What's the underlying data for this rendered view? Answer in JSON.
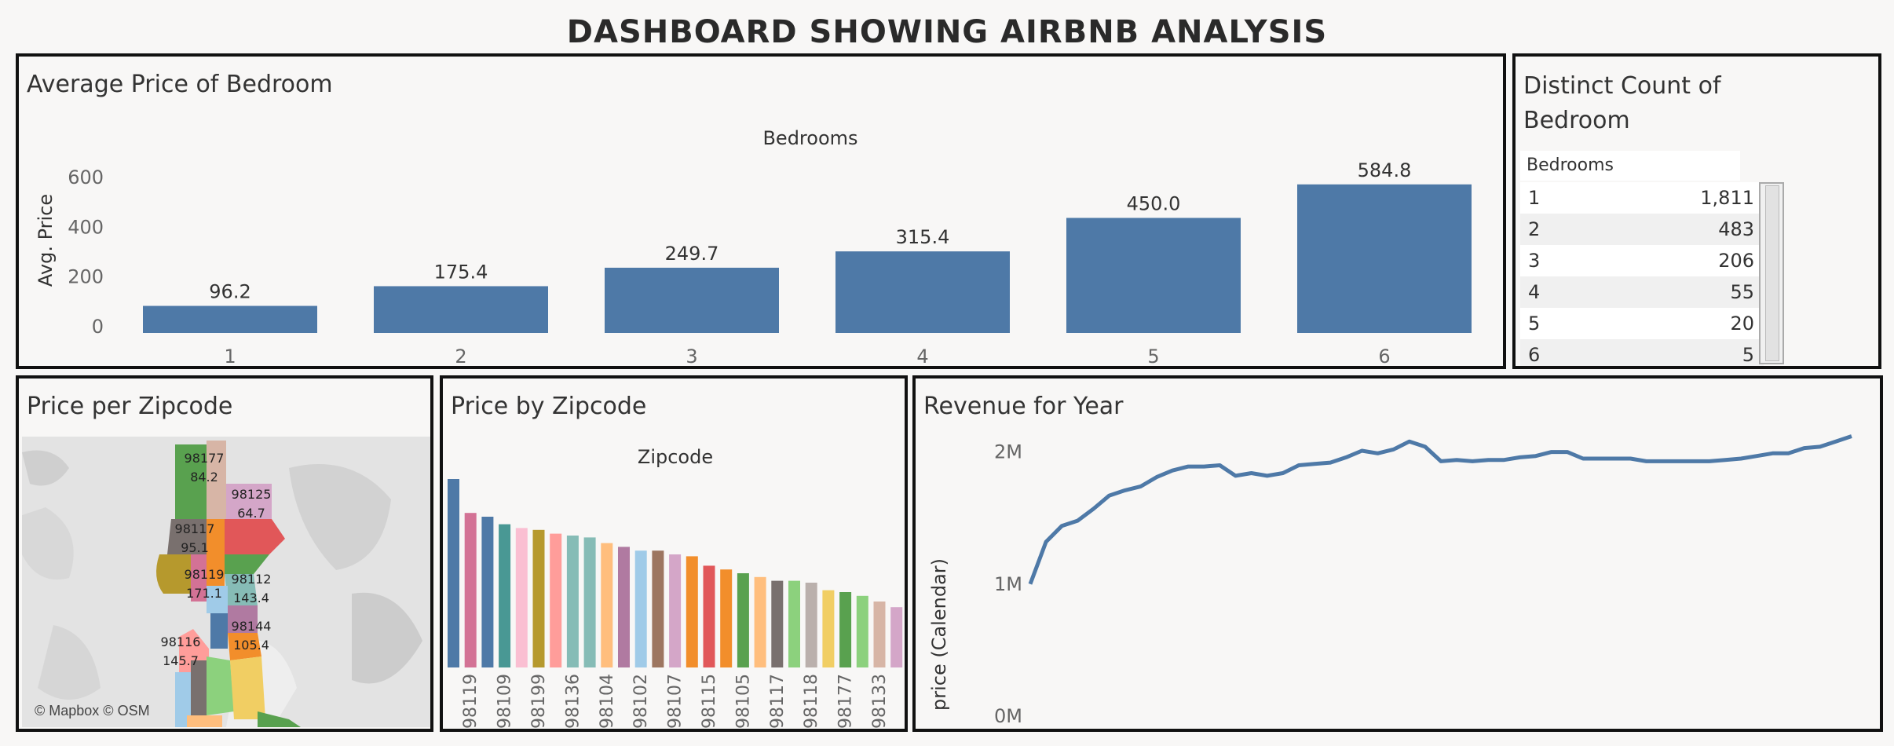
{
  "dashboard_title": "DASHBOARD SHOWING AIRBNB ANALYSIS",
  "panels": {
    "avg_price": {
      "title": "Average Price of Bedroom",
      "header": "Bedrooms",
      "ylabel": "Avg. Price"
    },
    "distinct_count": {
      "title_line1": "Distinct Count of",
      "title_line2": "Bedroom",
      "column_header": "Bedrooms"
    },
    "price_map": {
      "title": "Price per Zipcode",
      "credit": "© Mapbox © OSM"
    },
    "price_by_zip": {
      "title": "Price by Zipcode",
      "header": "Zipcode"
    },
    "revenue": {
      "title": "Revenue for Year",
      "ylabel": "price (Calendar)"
    }
  },
  "bedroom_counts": [
    {
      "bedrooms": "1",
      "count": "1,811"
    },
    {
      "bedrooms": "2",
      "count": "483"
    },
    {
      "bedrooms": "3",
      "count": "206"
    },
    {
      "bedrooms": "4",
      "count": "55"
    },
    {
      "bedrooms": "5",
      "count": "20"
    },
    {
      "bedrooms": "6",
      "count": "5"
    }
  ],
  "map_labels": [
    {
      "zip": "98177",
      "price": "84.2"
    },
    {
      "zip": "98125",
      "price": "64.7"
    },
    {
      "zip": "98117",
      "price": "95.1"
    },
    {
      "zip": "98119",
      "price": "171.1"
    },
    {
      "zip": "98112",
      "price": "143.4"
    },
    {
      "zip": "98144",
      "price": "105.4"
    },
    {
      "zip": "98116",
      "price": "145.7"
    }
  ],
  "colors": {
    "bar_blue": "#4e79a7",
    "line_blue": "#4e79a7",
    "panel_border": "#111111",
    "background": "#f8f7f6"
  },
  "chart_data": [
    {
      "type": "bar",
      "title": "Average Price of Bedroom",
      "xlabel": "Bedrooms",
      "ylabel": "Avg. Price",
      "categories": [
        "1",
        "2",
        "3",
        "4",
        "5",
        "6"
      ],
      "values": [
        96.2,
        175.4,
        249.7,
        315.4,
        450.0,
        584.8
      ],
      "value_labels": [
        "96.2",
        "175.4",
        "249.7",
        "315.4",
        "450.0",
        "584.8"
      ],
      "yticks": [
        0,
        200,
        400,
        600
      ],
      "ylim": [
        0,
        650
      ],
      "grid": false
    },
    {
      "type": "bar",
      "title": "Price by Zipcode",
      "xlabel": "Zipcode",
      "bars": [
        {
          "value": 1.0,
          "color": "#4e79a7"
        },
        {
          "value": 0.82,
          "color": "#d37295"
        },
        {
          "value": 0.8,
          "color": "#4e79a7"
        },
        {
          "value": 0.76,
          "color": "#499894"
        },
        {
          "value": 0.74,
          "color": "#fabfd2"
        },
        {
          "value": 0.73,
          "color": "#b6992d"
        },
        {
          "value": 0.71,
          "color": "#ff9d9a"
        },
        {
          "value": 0.7,
          "color": "#86bcb6"
        },
        {
          "value": 0.69,
          "color": "#86bcb6"
        },
        {
          "value": 0.66,
          "color": "#ffbe7d"
        },
        {
          "value": 0.64,
          "color": "#b07aa1"
        },
        {
          "value": 0.62,
          "color": "#a0cbe8"
        },
        {
          "value": 0.62,
          "color": "#9d7660"
        },
        {
          "value": 0.6,
          "color": "#d4a6c8"
        },
        {
          "value": 0.59,
          "color": "#f28e2b"
        },
        {
          "value": 0.54,
          "color": "#e15759"
        },
        {
          "value": 0.52,
          "color": "#f28e2b"
        },
        {
          "value": 0.5,
          "color": "#59a14f"
        },
        {
          "value": 0.48,
          "color": "#ffbe7d"
        },
        {
          "value": 0.46,
          "color": "#79706e"
        },
        {
          "value": 0.46,
          "color": "#8cd17d"
        },
        {
          "value": 0.45,
          "color": "#bab0ac"
        },
        {
          "value": 0.41,
          "color": "#f1ce63"
        },
        {
          "value": 0.4,
          "color": "#59a14f"
        },
        {
          "value": 0.38,
          "color": "#8cd17d"
        },
        {
          "value": 0.35,
          "color": "#d7b5a6"
        },
        {
          "value": 0.32,
          "color": "#d4a6c8"
        }
      ],
      "tick_labels": [
        "98119",
        "98109",
        "98199",
        "98136",
        "98104",
        "98102",
        "98107",
        "98115",
        "98105",
        "98117",
        "98118",
        "98177",
        "98133"
      ],
      "value_unit": "fraction of tallest bar"
    },
    {
      "type": "line",
      "title": "Revenue for Year",
      "ylabel": "price (Calendar)",
      "yticks": [
        "0M",
        "1M",
        "2M"
      ],
      "ylim": [
        0,
        2200000
      ],
      "values": [
        1000000,
        1320000,
        1440000,
        1480000,
        1570000,
        1670000,
        1710000,
        1740000,
        1810000,
        1860000,
        1890000,
        1890000,
        1900000,
        1820000,
        1840000,
        1820000,
        1840000,
        1900000,
        1910000,
        1920000,
        1960000,
        2010000,
        1990000,
        2020000,
        2080000,
        2040000,
        1930000,
        1940000,
        1930000,
        1940000,
        1940000,
        1960000,
        1970000,
        2000000,
        2000000,
        1950000,
        1950000,
        1950000,
        1950000,
        1930000,
        1930000,
        1930000,
        1930000,
        1930000,
        1940000,
        1950000,
        1970000,
        1990000,
        1990000,
        2030000,
        2040000,
        2080000,
        2120000
      ]
    }
  ]
}
